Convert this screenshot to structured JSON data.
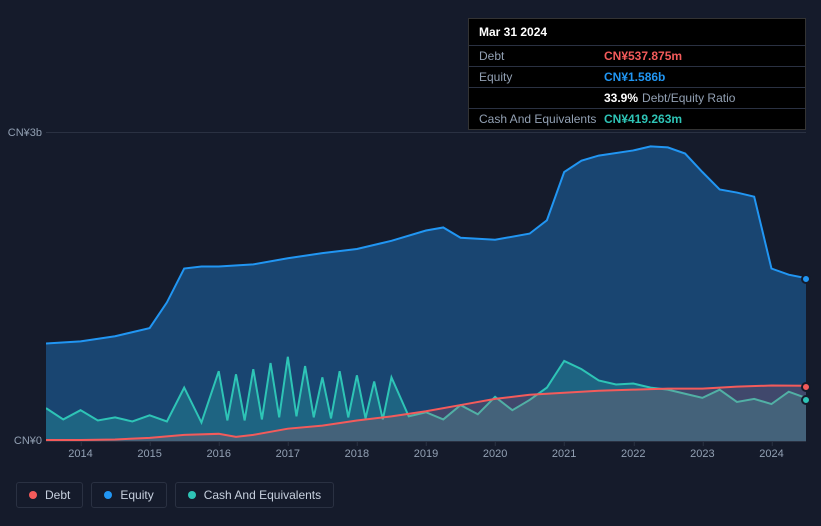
{
  "tooltip": {
    "date": "Mar 31 2024",
    "rows": {
      "debt": {
        "label": "Debt",
        "value": "CN¥537.875m",
        "color": "#f45b5b"
      },
      "equity": {
        "label": "Equity",
        "value": "CN¥1.586b",
        "color": "#2196f3"
      },
      "ratio": {
        "value": "33.9%",
        "suffix": "Debt/Equity Ratio"
      },
      "cash": {
        "label": "Cash And Equivalents",
        "value": "CN¥419.263m",
        "color": "#2ec4b6"
      }
    }
  },
  "chart": {
    "type": "area-line",
    "background_color": "#151b2b",
    "grid_color": "#2a3142",
    "axis_text_color": "#92a0b3",
    "ylim": [
      0,
      3000
    ],
    "y_ticks": [
      {
        "value": 0,
        "label": "CN¥0"
      },
      {
        "value": 3000,
        "label": "CN¥3b"
      }
    ],
    "x_years": [
      2014,
      2015,
      2016,
      2017,
      2018,
      2019,
      2020,
      2021,
      2022,
      2023,
      2024
    ],
    "x_range": [
      2013.5,
      2024.5
    ],
    "series": {
      "equity": {
        "label": "Equity",
        "color": "#2196f3",
        "fill_opacity": 0.35,
        "line_width": 2,
        "data": [
          [
            2013.5,
            950
          ],
          [
            2014.0,
            970
          ],
          [
            2014.5,
            1020
          ],
          [
            2015.0,
            1100
          ],
          [
            2015.25,
            1350
          ],
          [
            2015.5,
            1680
          ],
          [
            2015.75,
            1700
          ],
          [
            2016.0,
            1700
          ],
          [
            2016.5,
            1720
          ],
          [
            2017.0,
            1780
          ],
          [
            2017.5,
            1830
          ],
          [
            2018.0,
            1870
          ],
          [
            2018.5,
            1950
          ],
          [
            2019.0,
            2050
          ],
          [
            2019.25,
            2080
          ],
          [
            2019.5,
            1980
          ],
          [
            2020.0,
            1960
          ],
          [
            2020.5,
            2020
          ],
          [
            2020.75,
            2150
          ],
          [
            2021.0,
            2620
          ],
          [
            2021.25,
            2730
          ],
          [
            2021.5,
            2780
          ],
          [
            2022.0,
            2830
          ],
          [
            2022.25,
            2870
          ],
          [
            2022.5,
            2860
          ],
          [
            2022.75,
            2800
          ],
          [
            2023.0,
            2620
          ],
          [
            2023.25,
            2450
          ],
          [
            2023.5,
            2420
          ],
          [
            2023.75,
            2380
          ],
          [
            2024.0,
            1680
          ],
          [
            2024.25,
            1620
          ],
          [
            2024.5,
            1586
          ]
        ]
      },
      "cash": {
        "label": "Cash And Equivalents",
        "color": "#2ec4b6",
        "fill_opacity": 0.25,
        "line_width": 2,
        "data": [
          [
            2013.5,
            320
          ],
          [
            2013.75,
            210
          ],
          [
            2014.0,
            300
          ],
          [
            2014.25,
            200
          ],
          [
            2014.5,
            230
          ],
          [
            2014.75,
            190
          ],
          [
            2015.0,
            250
          ],
          [
            2015.25,
            190
          ],
          [
            2015.5,
            520
          ],
          [
            2015.75,
            180
          ],
          [
            2016.0,
            680
          ],
          [
            2016.125,
            200
          ],
          [
            2016.25,
            650
          ],
          [
            2016.375,
            200
          ],
          [
            2016.5,
            700
          ],
          [
            2016.625,
            210
          ],
          [
            2016.75,
            760
          ],
          [
            2016.875,
            230
          ],
          [
            2017.0,
            820
          ],
          [
            2017.125,
            240
          ],
          [
            2017.25,
            730
          ],
          [
            2017.375,
            230
          ],
          [
            2017.5,
            620
          ],
          [
            2017.625,
            220
          ],
          [
            2017.75,
            680
          ],
          [
            2017.875,
            230
          ],
          [
            2018.0,
            640
          ],
          [
            2018.125,
            220
          ],
          [
            2018.25,
            580
          ],
          [
            2018.375,
            210
          ],
          [
            2018.5,
            620
          ],
          [
            2018.75,
            240
          ],
          [
            2019.0,
            280
          ],
          [
            2019.25,
            210
          ],
          [
            2019.5,
            350
          ],
          [
            2019.75,
            260
          ],
          [
            2020.0,
            430
          ],
          [
            2020.25,
            300
          ],
          [
            2020.5,
            400
          ],
          [
            2020.75,
            520
          ],
          [
            2021.0,
            780
          ],
          [
            2021.25,
            700
          ],
          [
            2021.5,
            590
          ],
          [
            2021.75,
            550
          ],
          [
            2022.0,
            560
          ],
          [
            2022.25,
            520
          ],
          [
            2022.5,
            500
          ],
          [
            2022.75,
            460
          ],
          [
            2023.0,
            420
          ],
          [
            2023.25,
            500
          ],
          [
            2023.5,
            380
          ],
          [
            2023.75,
            410
          ],
          [
            2024.0,
            360
          ],
          [
            2024.25,
            480
          ],
          [
            2024.5,
            419
          ]
        ]
      },
      "debt": {
        "label": "Debt",
        "color": "#f45b5b",
        "fill_opacity": 0.18,
        "line_width": 2,
        "data": [
          [
            2013.5,
            10
          ],
          [
            2014.0,
            10
          ],
          [
            2014.5,
            15
          ],
          [
            2015.0,
            30
          ],
          [
            2015.5,
            60
          ],
          [
            2016.0,
            70
          ],
          [
            2016.25,
            40
          ],
          [
            2016.5,
            60
          ],
          [
            2017.0,
            120
          ],
          [
            2017.5,
            150
          ],
          [
            2018.0,
            200
          ],
          [
            2018.5,
            240
          ],
          [
            2019.0,
            290
          ],
          [
            2019.5,
            350
          ],
          [
            2020.0,
            410
          ],
          [
            2020.5,
            450
          ],
          [
            2021.0,
            470
          ],
          [
            2021.5,
            490
          ],
          [
            2022.0,
            500
          ],
          [
            2022.5,
            510
          ],
          [
            2023.0,
            510
          ],
          [
            2023.5,
            530
          ],
          [
            2024.0,
            540
          ],
          [
            2024.5,
            538
          ]
        ]
      }
    },
    "legend": [
      {
        "key": "debt",
        "label": "Debt",
        "color": "#f45b5b"
      },
      {
        "key": "equity",
        "label": "Equity",
        "color": "#2196f3"
      },
      {
        "key": "cash",
        "label": "Cash And Equivalents",
        "color": "#2ec4b6"
      }
    ]
  }
}
